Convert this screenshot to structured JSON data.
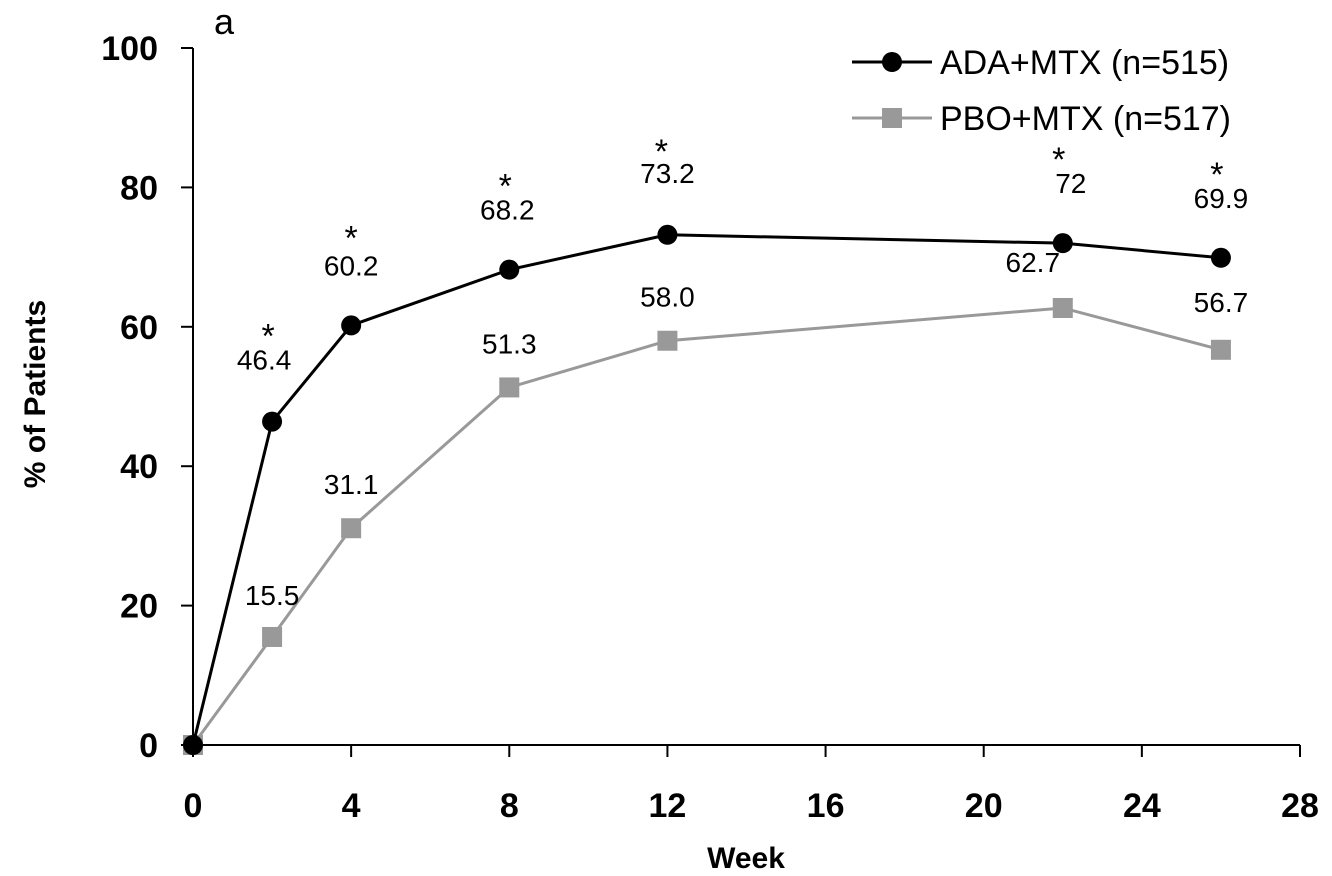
{
  "chart_data": {
    "type": "line",
    "panel_label": "a",
    "xlabel": "Week",
    "ylabel": "% of Patients",
    "xlim": [
      0,
      28
    ],
    "ylim": [
      0,
      100
    ],
    "xticks": [
      0,
      4,
      8,
      12,
      16,
      20,
      24,
      28
    ],
    "yticks": [
      0,
      20,
      40,
      60,
      80,
      100
    ],
    "grid": false,
    "legend_position": "top-right",
    "series": [
      {
        "name": "ADA+MTX (n=515)",
        "color": "#000000",
        "marker": "circle",
        "x": [
          0,
          2,
          4,
          8,
          12,
          22,
          26
        ],
        "y": [
          0,
          46.4,
          60.2,
          68.2,
          73.2,
          72,
          69.9
        ],
        "labels": [
          "",
          "46.4",
          "60.2",
          "68.2",
          "73.2",
          "72",
          "69.9"
        ],
        "significance": [
          "",
          "*",
          "*",
          "*",
          "*",
          "*",
          "*"
        ]
      },
      {
        "name": "PBO+MTX (n=517)",
        "color": "#999999",
        "marker": "square",
        "x": [
          0,
          2,
          4,
          8,
          12,
          22,
          26
        ],
        "y": [
          0,
          15.5,
          31.1,
          51.3,
          58.0,
          62.7,
          56.7
        ],
        "labels": [
          "",
          "15.5",
          "31.1",
          "51.3",
          "58.0",
          "62.7",
          "56.7"
        ]
      }
    ]
  }
}
